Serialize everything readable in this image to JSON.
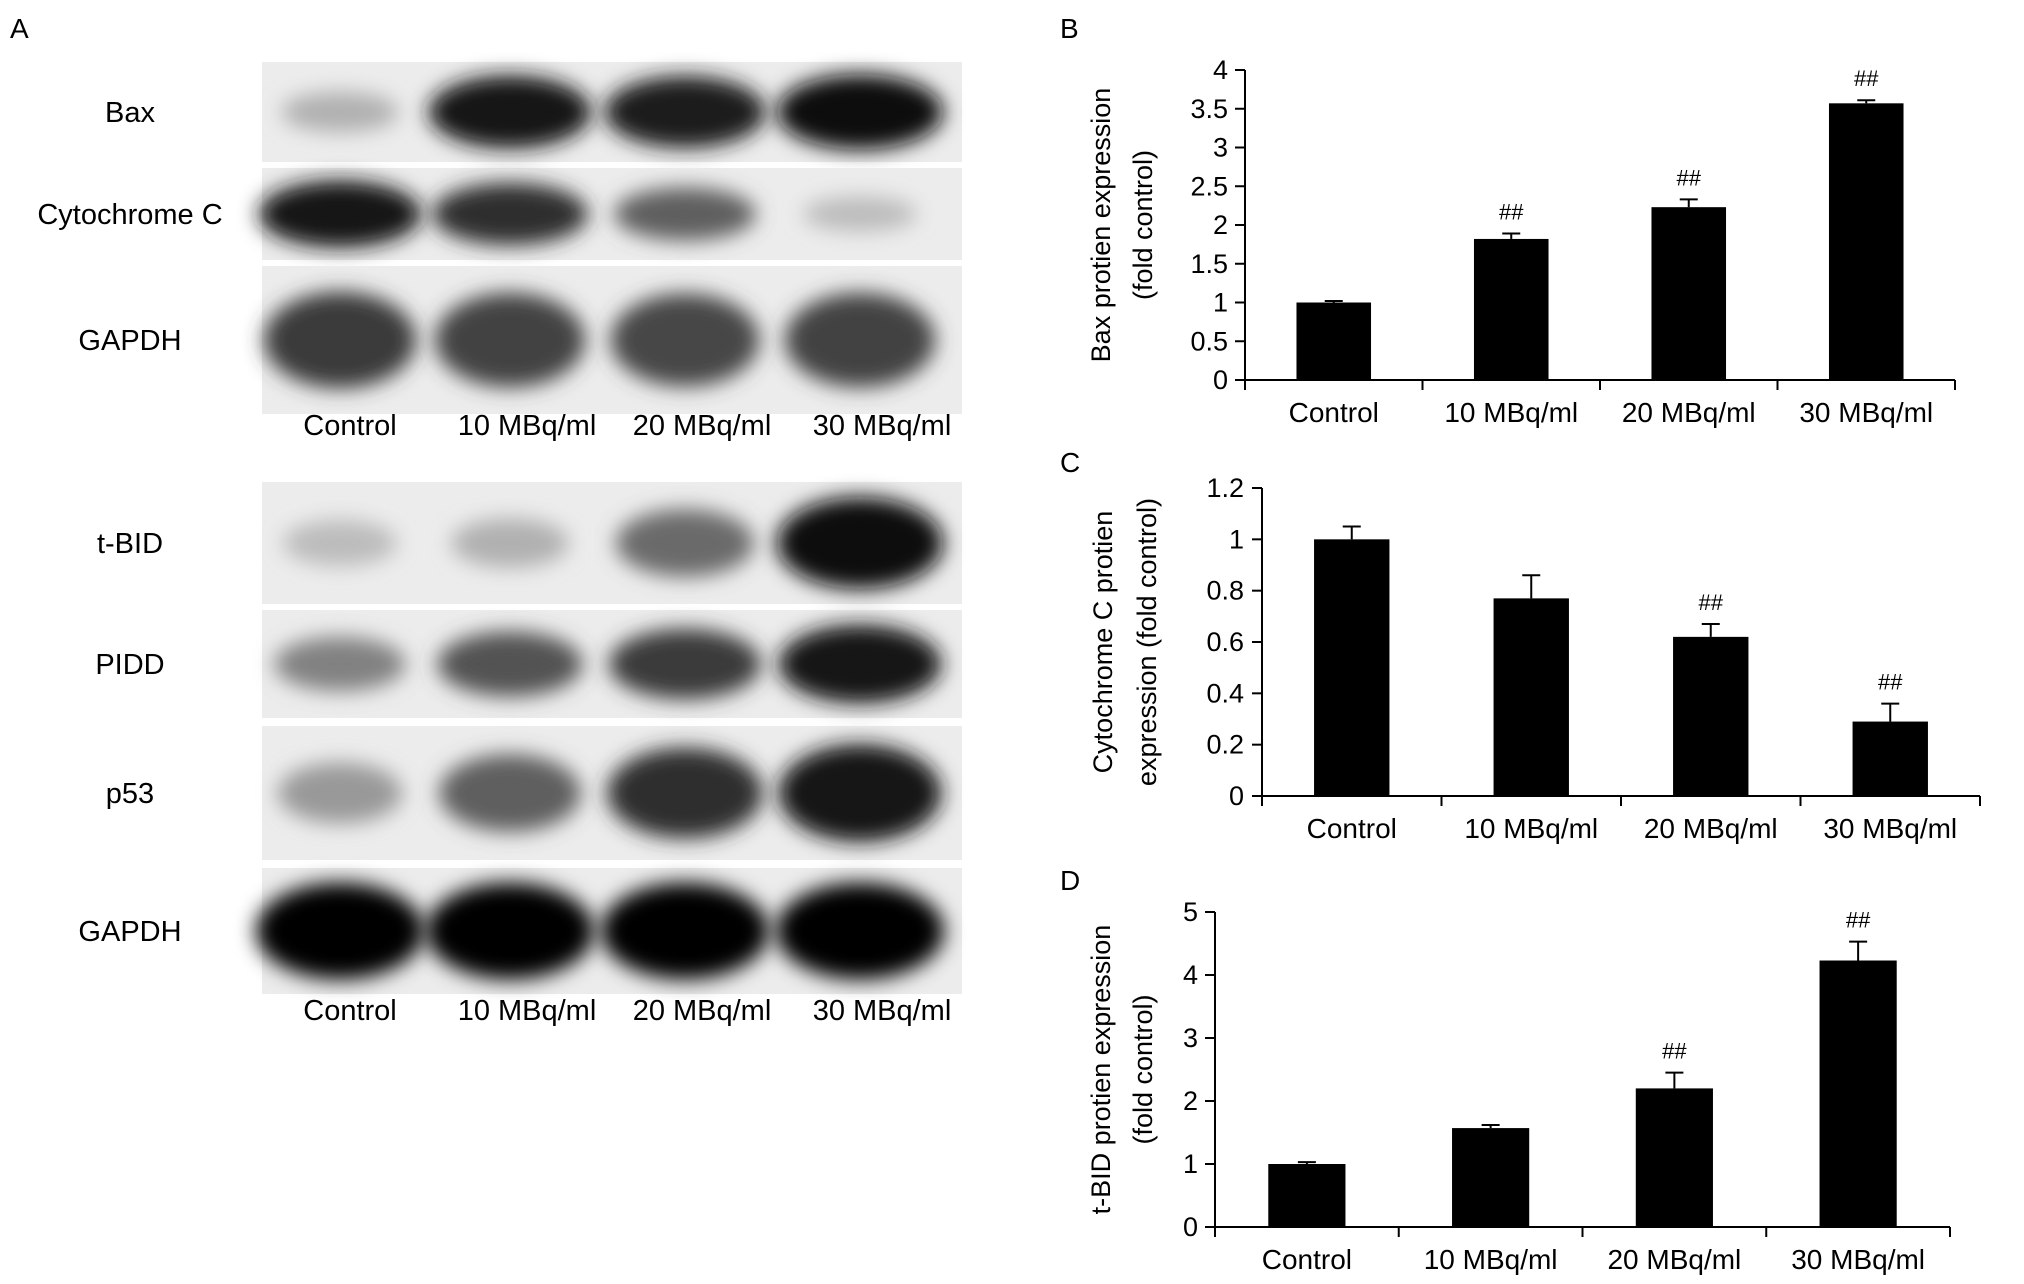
{
  "panelA": {
    "letter": "A",
    "groups": [
      {
        "rows": [
          {
            "label": "Bax",
            "bands": [
              0.25,
              0.9,
              0.88,
              0.95
            ]
          },
          {
            "label": "Cytochrome C",
            "bands": [
              0.9,
              0.8,
              0.6,
              0.2
            ]
          },
          {
            "label": "GAPDH",
            "bands": [
              0.75,
              0.72,
              0.7,
              0.72
            ]
          }
        ],
        "lanes": [
          "Control",
          "10 MBq/ml",
          "20 MBq/ml",
          "30 MBq/ml"
        ]
      },
      {
        "rows": [
          {
            "label": "t-BID",
            "bands": [
              0.2,
              0.25,
              0.55,
              0.95
            ]
          },
          {
            "label": "PIDD",
            "bands": [
              0.45,
              0.65,
              0.75,
              0.9
            ]
          },
          {
            "label": "p53",
            "bands": [
              0.35,
              0.6,
              0.8,
              0.9
            ]
          },
          {
            "label": "GAPDH",
            "bands": [
              0.98,
              0.98,
              0.98,
              0.98
            ]
          }
        ],
        "lanes": [
          "Control",
          "10 MBq/ml",
          "20 MBq/ml",
          "30 MBq/ml"
        ]
      }
    ]
  },
  "chart_data": [
    {
      "panel": "B",
      "type": "bar",
      "categories": [
        "Control",
        "10 MBq/ml",
        "20 MBq/ml",
        "30 MBq/ml"
      ],
      "values": [
        1.0,
        1.82,
        2.23,
        3.57
      ],
      "errors": [
        0.02,
        0.07,
        0.1,
        0.04
      ],
      "annotations": [
        "",
        "##",
        "##",
        "##"
      ],
      "ylabel": [
        "Bax protien expression",
        "(fold control)"
      ],
      "ylim": [
        0,
        4
      ],
      "yticks": [
        "0",
        "0.5",
        "1",
        "1.5",
        "2",
        "2.5",
        "3",
        "3.5",
        "4"
      ]
    },
    {
      "panel": "C",
      "type": "bar",
      "categories": [
        "Control",
        "10 MBq/ml",
        "20 MBq/ml",
        "30 MBq/ml"
      ],
      "values": [
        1.0,
        0.77,
        0.62,
        0.29
      ],
      "errors": [
        0.05,
        0.09,
        0.05,
        0.07
      ],
      "annotations": [
        "",
        "",
        "##",
        "##"
      ],
      "ylabel": [
        "Cytochrome C protien",
        "expression (fold control)"
      ],
      "ylim": [
        0,
        1.2
      ],
      "yticks": [
        "0",
        "0.2",
        "0.4",
        "0.6",
        "0.8",
        "1",
        "1.2"
      ]
    },
    {
      "panel": "D",
      "type": "bar",
      "categories": [
        "Control",
        "10 MBq/ml",
        "20 MBq/ml",
        "30 MBq/ml"
      ],
      "values": [
        1.0,
        1.57,
        2.2,
        4.23
      ],
      "errors": [
        0.03,
        0.05,
        0.25,
        0.3
      ],
      "annotations": [
        "",
        "",
        "##",
        "##"
      ],
      "ylabel": [
        "t-BID protien expression",
        "(fold control)"
      ],
      "ylim": [
        0,
        5
      ],
      "yticks": [
        "0",
        "1",
        "2",
        "3",
        "4",
        "5"
      ]
    }
  ]
}
